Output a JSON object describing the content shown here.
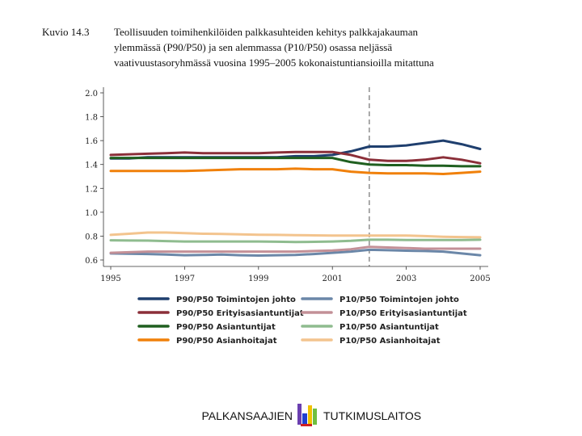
{
  "caption": {
    "label": "Kuvio 14.3",
    "lines": [
      "Teollisuuden toimihenkilöiden palkkasuhteiden kehitys palkkajakauman",
      "ylemmässä (P90/P50) ja sen alemmassa (P10/P50) osassa neljässä",
      "vaativuustasoryhmässä vuosina 1995–2005 kokonaistuntiansioilla mitattuna"
    ]
  },
  "chart_data": {
    "type": "line",
    "title": "",
    "xlabel": "",
    "ylabel": "",
    "xlim": [
      1995,
      2005
    ],
    "ylim": [
      0.6,
      2.0
    ],
    "xticks": [
      "1995",
      "1997",
      "1999",
      "2001",
      "2003",
      "2005"
    ],
    "xtick_values": [
      1995,
      1997,
      1999,
      2001,
      2003,
      2005
    ],
    "yticks": [
      "0.6",
      "0.8",
      "1.0",
      "1.2",
      "1.4",
      "1.6",
      "1.8",
      "2.0"
    ],
    "ytick_values": [
      0.6,
      0.8,
      1.0,
      1.2,
      1.4,
      1.6,
      1.8,
      2.0
    ],
    "vline": 2002,
    "legend_position": "bottom",
    "x": [
      1995,
      1995.5,
      1996,
      1996.5,
      1997,
      1997.5,
      1998,
      1998.5,
      1999,
      1999.5,
      2000,
      2000.5,
      2001,
      2001.5,
      2002,
      2002.5,
      2003,
      2003.5,
      2004,
      2004.5,
      2005
    ],
    "series": [
      {
        "name": "P90/P50 Toimintojen johto",
        "color": "#1f3f6e",
        "values": [
          1.45,
          1.45,
          1.46,
          1.46,
          1.46,
          1.46,
          1.46,
          1.46,
          1.46,
          1.46,
          1.47,
          1.47,
          1.48,
          1.51,
          1.55,
          1.55,
          1.56,
          1.58,
          1.6,
          1.57,
          1.53
        ]
      },
      {
        "name": "P10/P50 Toimintojen johto",
        "color": "#6b87a8",
        "values": [
          0.655,
          0.652,
          0.65,
          0.645,
          0.64,
          0.642,
          0.645,
          0.64,
          0.637,
          0.64,
          0.642,
          0.65,
          0.66,
          0.67,
          0.685,
          0.682,
          0.678,
          0.675,
          0.67,
          0.655,
          0.64
        ]
      },
      {
        "name": "P90/P50 Erityisasiantuntijat",
        "color": "#8b2f39",
        "values": [
          1.48,
          1.485,
          1.49,
          1.495,
          1.5,
          1.495,
          1.495,
          1.495,
          1.495,
          1.5,
          1.505,
          1.505,
          1.505,
          1.48,
          1.44,
          1.43,
          1.43,
          1.44,
          1.46,
          1.44,
          1.41
        ]
      },
      {
        "name": "P10/P50 Erityisasiantuntijat",
        "color": "#c39097",
        "values": [
          0.66,
          0.665,
          0.67,
          0.67,
          0.67,
          0.67,
          0.67,
          0.67,
          0.67,
          0.67,
          0.67,
          0.675,
          0.68,
          0.69,
          0.71,
          0.705,
          0.7,
          0.695,
          0.695,
          0.695,
          0.695
        ]
      },
      {
        "name": "P90/P50 Asiantuntijat",
        "color": "#1f5f1f",
        "values": [
          1.455,
          1.455,
          1.455,
          1.455,
          1.455,
          1.455,
          1.455,
          1.455,
          1.455,
          1.455,
          1.455,
          1.455,
          1.455,
          1.42,
          1.4,
          1.395,
          1.395,
          1.39,
          1.39,
          1.385,
          1.385
        ]
      },
      {
        "name": "P10/P50 Asiantuntijat",
        "color": "#8fbc8f",
        "values": [
          0.765,
          0.763,
          0.762,
          0.758,
          0.755,
          0.755,
          0.755,
          0.755,
          0.755,
          0.753,
          0.75,
          0.752,
          0.755,
          0.76,
          0.77,
          0.77,
          0.768,
          0.768,
          0.768,
          0.768,
          0.77
        ]
      },
      {
        "name": "P90/P50 Asianhoitajat",
        "color": "#f0800a",
        "values": [
          1.345,
          1.345,
          1.345,
          1.345,
          1.345,
          1.35,
          1.355,
          1.36,
          1.36,
          1.36,
          1.365,
          1.36,
          1.36,
          1.34,
          1.33,
          1.325,
          1.325,
          1.325,
          1.32,
          1.33,
          1.34
        ]
      },
      {
        "name": "P10/P50 Asianhoitajat",
        "color": "#f3c48e",
        "values": [
          0.81,
          0.82,
          0.83,
          0.83,
          0.825,
          0.82,
          0.818,
          0.815,
          0.812,
          0.81,
          0.808,
          0.806,
          0.805,
          0.805,
          0.805,
          0.805,
          0.805,
          0.8,
          0.795,
          0.792,
          0.79
        ]
      }
    ]
  },
  "footer": {
    "left_text": "PALKANSAAJIEN",
    "right_text": "TUTKIMUSLAITOS"
  }
}
